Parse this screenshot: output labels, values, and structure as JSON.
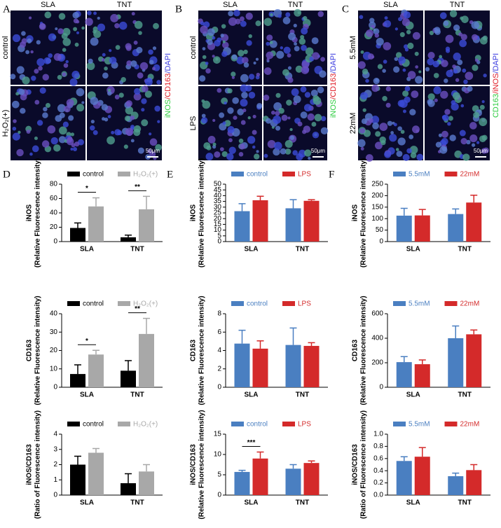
{
  "panels": [
    {
      "letter": "A",
      "columns": [
        "SLA",
        "TNT"
      ],
      "rows": [
        "control",
        "H₂O₂(+)"
      ],
      "stain": [
        "iNOS",
        "/CD163",
        "/DAPI"
      ],
      "stain_colors": [
        "#2ecc40",
        "#e0202a",
        "#3a3adf"
      ],
      "scale": "50μm"
    },
    {
      "letter": "B",
      "columns": [
        "SLA",
        "TNT"
      ],
      "rows": [
        "control",
        "LPS"
      ],
      "stain": [
        "iNOS",
        "/CD163",
        "/DAPI"
      ],
      "stain_colors": [
        "#2ecc40",
        "#e0202a",
        "#3a3adf"
      ],
      "scale": "50μm"
    },
    {
      "letter": "C",
      "columns": [
        "SLA",
        "TNT"
      ],
      "rows": [
        "5.5mM",
        "22mM"
      ],
      "stain": [
        "CD163",
        "/iNOS",
        "/DAPI"
      ],
      "stain_colors": [
        "#2ecc40",
        "#e0202a",
        "#3a3adf"
      ],
      "scale": "50μm"
    }
  ],
  "chart_letters": [
    "D",
    "E",
    "F"
  ],
  "chart_data": [
    {
      "type": "bar",
      "ylabel": [
        "iNOS",
        "(Relative Fluorescence intensity)"
      ],
      "categories": [
        "SLA",
        "TNT"
      ],
      "ylim": [
        0,
        80
      ],
      "yticks": [
        0,
        20,
        40,
        60,
        80
      ],
      "series": [
        {
          "name": "control",
          "color": "#000000",
          "values": [
            19,
            6
          ],
          "errors": [
            7,
            3
          ]
        },
        {
          "name": "H₂O₂(+)",
          "color": "#a8a8a8",
          "values": [
            49,
            45
          ],
          "errors": [
            12,
            18
          ]
        }
      ],
      "annotations": [
        {
          "text": "*",
          "category": 0
        },
        {
          "text": "**",
          "category": 1
        }
      ]
    },
    {
      "type": "bar",
      "ylabel": [
        "CD163",
        "(Relative Fluorescence intensity)"
      ],
      "categories": [
        "SLA",
        "TNT"
      ],
      "ylim": [
        0,
        40
      ],
      "yticks": [
        0,
        10,
        20,
        30,
        40
      ],
      "series": [
        {
          "name": "control",
          "color": "#000000",
          "values": [
            7.2,
            9
          ],
          "errors": [
            5,
            5.5
          ]
        },
        {
          "name": "H₂O₂(+)",
          "color": "#a8a8a8",
          "values": [
            17.8,
            29
          ],
          "errors": [
            2.3,
            8.5
          ]
        }
      ],
      "annotations": [
        {
          "text": "*",
          "category": 0
        },
        {
          "text": "**",
          "category": 1
        }
      ]
    },
    {
      "type": "bar",
      "ylabel": [
        "iNOS/CD163",
        "(Ratio of Fluorescence intensity)"
      ],
      "categories": [
        "SLA",
        "TNT"
      ],
      "ylim": [
        0,
        4
      ],
      "yticks": [
        0,
        1,
        2,
        3,
        4
      ],
      "series": [
        {
          "name": "control",
          "color": "#000000",
          "values": [
            2,
            0.78
          ],
          "errors": [
            0.55,
            0.62
          ]
        },
        {
          "name": "H₂O₂(+)",
          "color": "#a8a8a8",
          "values": [
            2.78,
            1.55
          ],
          "errors": [
            0.28,
            0.45
          ]
        }
      ],
      "annotations": []
    },
    {
      "type": "bar",
      "ylabel": [
        "iNOS",
        "(Relative Fluorescence intensity)"
      ],
      "categories": [
        "SLA",
        "TNT"
      ],
      "ylim": [
        0,
        50
      ],
      "yticks": [
        0,
        5,
        10,
        15,
        20,
        25,
        30,
        35,
        40,
        45,
        50
      ],
      "series": [
        {
          "name": "control",
          "color": "#4a7fc1",
          "values": [
            26.5,
            29
          ],
          "errors": [
            6.5,
            7.5
          ]
        },
        {
          "name": "LPS",
          "color": "#d42a2a",
          "values": [
            36,
            35.5
          ],
          "errors": [
            3.5,
            1
          ]
        }
      ],
      "annotations": []
    },
    {
      "type": "bar",
      "ylabel": [
        "CD163",
        "(Relative Fluorescence intensity)"
      ],
      "categories": [
        "SLA",
        "TNT"
      ],
      "ylim": [
        0,
        8
      ],
      "yticks": [
        0,
        2,
        4,
        6,
        8
      ],
      "series": [
        {
          "name": "control",
          "color": "#4a7fc1",
          "values": [
            4.75,
            4.6
          ],
          "errors": [
            1.45,
            1.85
          ]
        },
        {
          "name": "LPS",
          "color": "#d42a2a",
          "values": [
            4.2,
            4.5
          ],
          "errors": [
            0.85,
            0.35
          ]
        }
      ],
      "annotations": []
    },
    {
      "type": "bar",
      "ylabel": [
        "iNOS/CD163",
        "(Relative Fluorescence intensity)"
      ],
      "categories": [
        "SLA",
        "TNT"
      ],
      "ylim": [
        0,
        15
      ],
      "yticks": [
        0,
        5,
        10,
        15
      ],
      "series": [
        {
          "name": "control",
          "color": "#4a7fc1",
          "values": [
            5.7,
            6.5
          ],
          "errors": [
            0.4,
            1
          ]
        },
        {
          "name": "LPS",
          "color": "#d42a2a",
          "values": [
            9,
            7.9
          ],
          "errors": [
            1.6,
            0.5
          ]
        }
      ],
      "annotations": [
        {
          "text": "***",
          "category": 0
        }
      ]
    },
    {
      "type": "bar",
      "ylabel": [
        "iNOS",
        "(Relative Fluorescence intensity)"
      ],
      "categories": [
        "SLA",
        "TNT"
      ],
      "ylim": [
        0,
        250
      ],
      "yticks": [
        0,
        50,
        100,
        150,
        200,
        250
      ],
      "series": [
        {
          "name": "5.5mM",
          "color": "#4a7fc1",
          "values": [
            113,
            120
          ],
          "errors": [
            32,
            22
          ]
        },
        {
          "name": "22mM",
          "color": "#d42a2a",
          "values": [
            114,
            170
          ],
          "errors": [
            26,
            32
          ]
        }
      ],
      "annotations": []
    },
    {
      "type": "bar",
      "ylabel": [
        "CD163",
        "(Relative Fluorescence intensity)"
      ],
      "categories": [
        "SLA",
        "TNT"
      ],
      "ylim": [
        0,
        600
      ],
      "yticks": [
        0,
        200,
        400,
        600
      ],
      "series": [
        {
          "name": "5.5mM",
          "color": "#4a7fc1",
          "values": [
            205,
            400
          ],
          "errors": [
            45,
            100
          ]
        },
        {
          "name": "22mM",
          "color": "#d42a2a",
          "values": [
            188,
            432
          ],
          "errors": [
            35,
            35
          ]
        }
      ],
      "annotations": []
    },
    {
      "type": "bar",
      "ylabel": [
        "iNOS/CD163",
        "(Ratio of Fluorescence intensity)"
      ],
      "categories": [
        "SLA",
        "TNT"
      ],
      "ylim": [
        0,
        1
      ],
      "yticks": [
        {
          "value": 0,
          "label": "0.0"
        },
        0.2,
        0.4,
        0.6,
        0.8,
        {
          "value": 1,
          "label": "1.0"
        }
      ],
      "series": [
        {
          "name": "5.5mM",
          "color": "#4a7fc1",
          "values": [
            0.56,
            0.31
          ],
          "errors": [
            0.07,
            0.05
          ]
        },
        {
          "name": "22mM",
          "color": "#d42a2a",
          "values": [
            0.63,
            0.41
          ],
          "errors": [
            0.15,
            0.09
          ]
        }
      ],
      "annotations": []
    }
  ]
}
